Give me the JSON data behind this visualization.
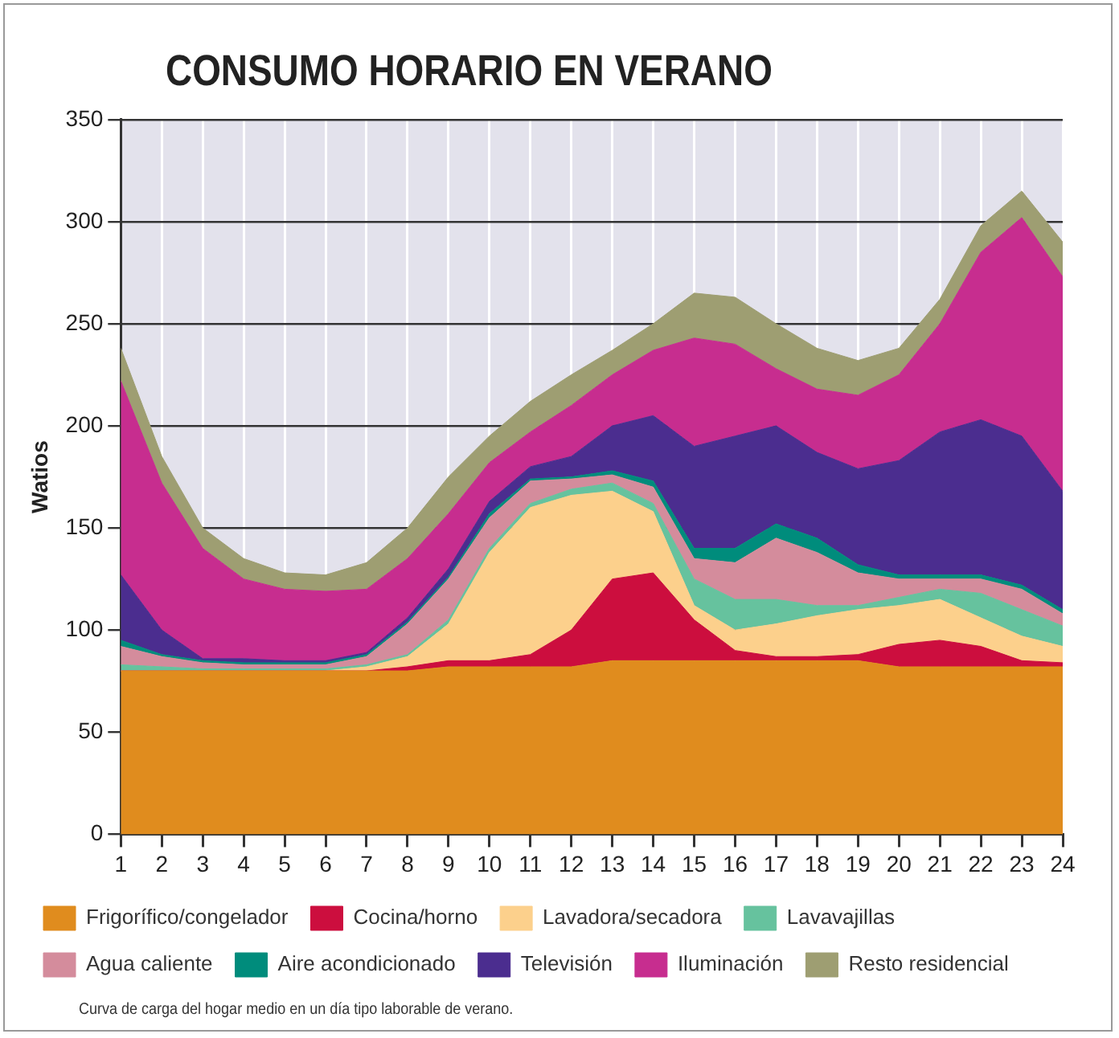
{
  "chart_data": {
    "type": "area",
    "title": "CONSUMO HORARIO EN VERANO",
    "ylabel": "Watios",
    "stacked": true,
    "grid": true,
    "legend": "bottom",
    "x": [
      1,
      2,
      3,
      4,
      5,
      6,
      7,
      8,
      9,
      10,
      11,
      12,
      13,
      14,
      15,
      16,
      17,
      18,
      19,
      20,
      21,
      22,
      23,
      24
    ],
    "xlim": [
      1,
      24
    ],
    "xticks": [
      1,
      2,
      3,
      4,
      5,
      6,
      7,
      8,
      9,
      10,
      11,
      12,
      13,
      14,
      15,
      16,
      17,
      18,
      19,
      20,
      21,
      22,
      23,
      24
    ],
    "ylim": [
      0,
      350
    ],
    "yticks": [
      0,
      50,
      100,
      150,
      200,
      250,
      300,
      350
    ],
    "series": [
      {
        "name": "Frigorífico/congelador",
        "color": "#e08c1e",
        "values": [
          80,
          80,
          80,
          80,
          80,
          80,
          80,
          80,
          82,
          82,
          82,
          82,
          85,
          85,
          85,
          85,
          85,
          85,
          85,
          82,
          82,
          82,
          82,
          82
        ]
      },
      {
        "name": "Cocina/horno",
        "color": "#cc0e3e",
        "values": [
          0,
          0,
          0,
          0,
          0,
          0,
          0,
          2,
          3,
          3,
          6,
          18,
          40,
          43,
          20,
          5,
          2,
          2,
          3,
          11,
          13,
          10,
          3,
          2
        ]
      },
      {
        "name": "Lavadora/secadora",
        "color": "#fcd08c",
        "values": [
          0,
          0,
          0,
          0,
          0,
          0,
          2,
          5,
          18,
          53,
          72,
          66,
          43,
          30,
          7,
          10,
          16,
          20,
          22,
          19,
          20,
          14,
          12,
          8
        ]
      },
      {
        "name": "Lavavajillas",
        "color": "#66c29e",
        "values": [
          3,
          2,
          1,
          1,
          1,
          1,
          1,
          1,
          2,
          2,
          2,
          3,
          4,
          4,
          13,
          15,
          12,
          5,
          2,
          4,
          5,
          12,
          13,
          10
        ]
      },
      {
        "name": "Agua caliente",
        "color": "#d48c9c",
        "values": [
          9,
          5,
          3,
          2,
          2,
          2,
          4,
          15,
          20,
          15,
          11,
          5,
          4,
          8,
          10,
          18,
          30,
          26,
          16,
          9,
          5,
          7,
          10,
          6
        ]
      },
      {
        "name": "Aire acondicionado",
        "color": "#008c7c",
        "values": [
          3,
          1,
          1,
          1,
          1,
          1,
          1,
          1,
          1,
          2,
          1,
          1,
          2,
          3,
          5,
          7,
          7,
          7,
          4,
          2,
          2,
          2,
          2,
          2
        ]
      },
      {
        "name": "Televisión",
        "color": "#4b2d8f",
        "values": [
          32,
          12,
          1,
          2,
          1,
          1,
          1,
          2,
          4,
          6,
          6,
          10,
          22,
          32,
          50,
          55,
          48,
          42,
          47,
          56,
          70,
          76,
          73,
          58
        ]
      },
      {
        "name": "Iluminación",
        "color": "#c72d8f",
        "values": [
          95,
          72,
          54,
          39,
          35,
          34,
          31,
          29,
          27,
          19,
          17,
          25,
          25,
          32,
          53,
          45,
          28,
          31,
          36,
          42,
          53,
          82,
          107,
          105
        ]
      },
      {
        "name": "Resto residencial",
        "color": "#9e9e72",
        "values": [
          16,
          13,
          10,
          10,
          8,
          8,
          13,
          15,
          18,
          13,
          15,
          15,
          12,
          13,
          22,
          23,
          22,
          20,
          17,
          13,
          12,
          13,
          13,
          17
        ]
      }
    ],
    "annotations": [
      "Curva de carga del hogar medio en un día tipo laborable de verano."
    ]
  }
}
